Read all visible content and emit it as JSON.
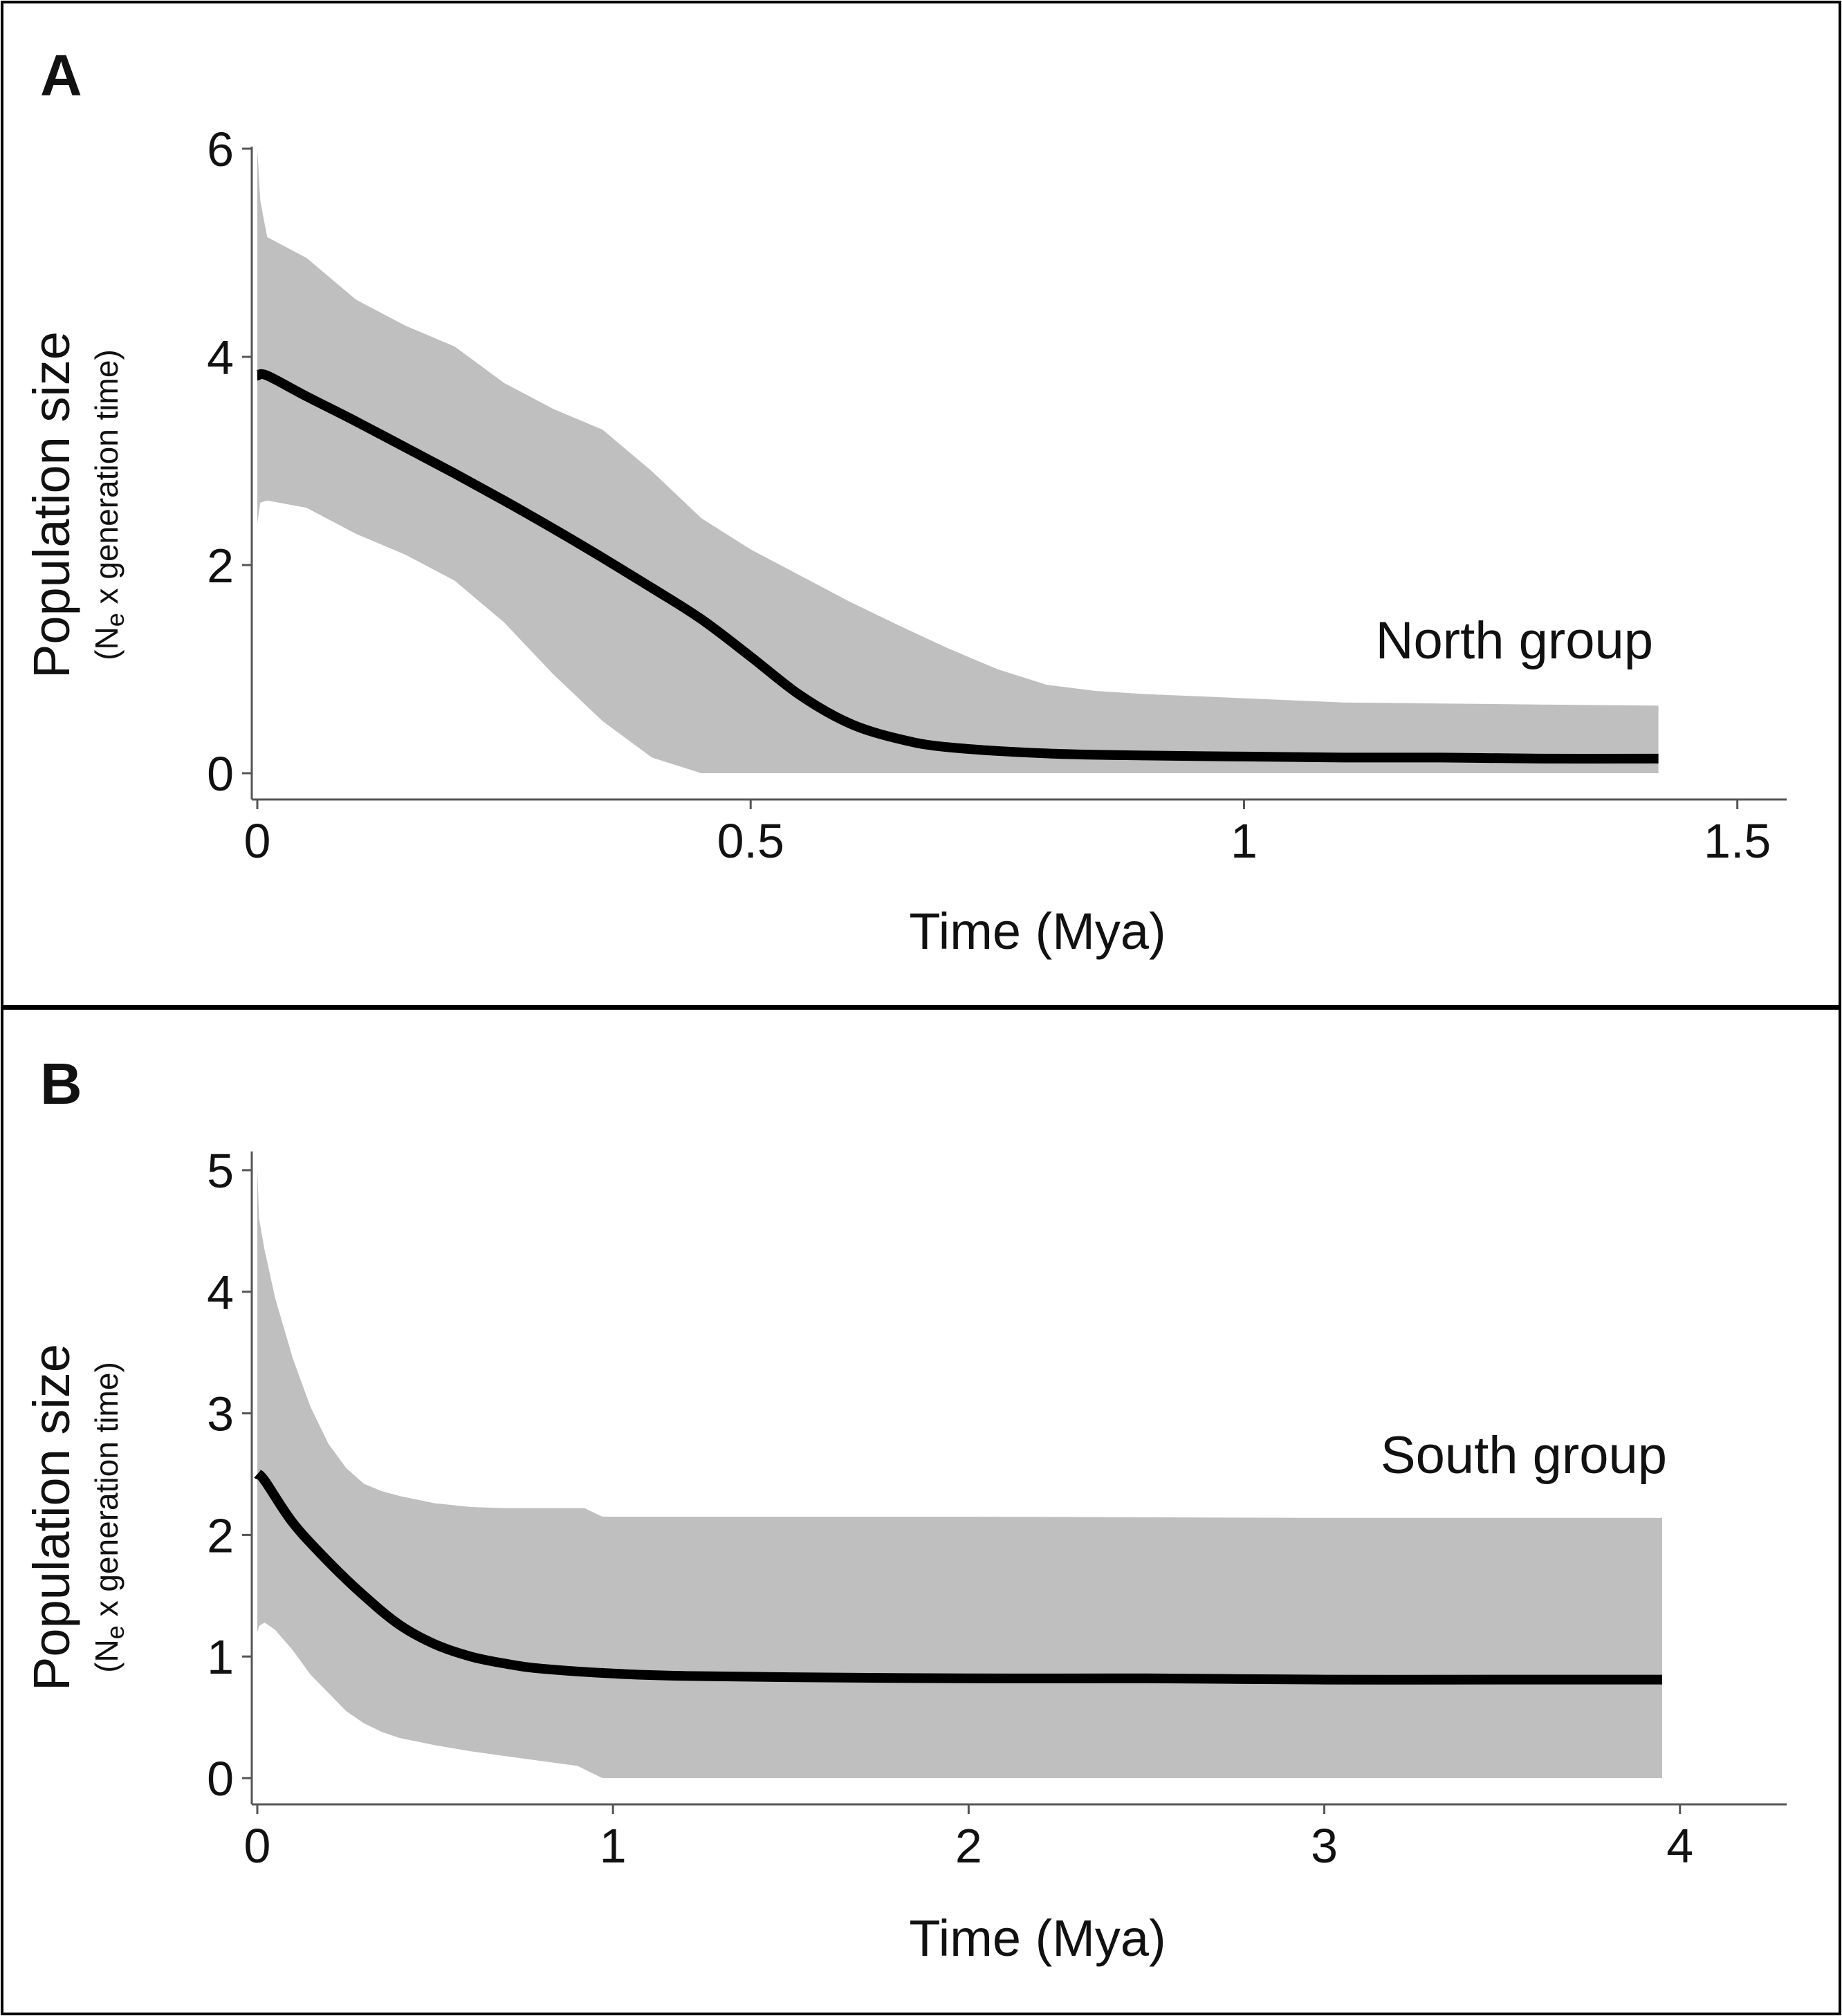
{
  "chart_data": [
    {
      "type": "area",
      "panel": "A",
      "title": "",
      "annotation": "North group",
      "xlabel": "Time (Mya)",
      "ylabel": "Population size",
      "ylabel_sub_prefix": "(N",
      "ylabel_sub_subscript": "e",
      "ylabel_sub_suffix": " x generation time)",
      "xlim": [
        0,
        1.55
      ],
      "ylim": [
        0,
        6.2
      ],
      "xticks": [
        0,
        0.5,
        1,
        1.5
      ],
      "xtick_labels": [
        "0",
        "0.5",
        "1",
        "1.5"
      ],
      "yticks": [
        0,
        2,
        4,
        6
      ],
      "ytick_labels": [
        "0",
        "2",
        "4",
        "6"
      ],
      "grid": false,
      "series": [
        {
          "name": "median",
          "x": [
            0,
            0.01,
            0.05,
            0.1,
            0.15,
            0.2,
            0.25,
            0.3,
            0.35,
            0.4,
            0.45,
            0.5,
            0.55,
            0.6,
            0.65,
            0.7,
            0.8,
            0.9,
            1.0,
            1.1,
            1.2,
            1.3,
            1.42
          ],
          "values": [
            3.82,
            3.82,
            3.62,
            3.38,
            3.13,
            2.88,
            2.62,
            2.35,
            2.07,
            1.78,
            1.48,
            1.12,
            0.75,
            0.48,
            0.33,
            0.25,
            0.19,
            0.17,
            0.16,
            0.15,
            0.15,
            0.14,
            0.14
          ]
        },
        {
          "name": "upper 95% HPD",
          "x": [
            0,
            0.003,
            0.01,
            0.05,
            0.1,
            0.15,
            0.2,
            0.25,
            0.3,
            0.35,
            0.4,
            0.45,
            0.5,
            0.55,
            0.6,
            0.65,
            0.7,
            0.75,
            0.8,
            0.85,
            0.9,
            1.0,
            1.1,
            1.2,
            1.3,
            1.42
          ],
          "values": [
            6.0,
            5.5,
            5.15,
            4.95,
            4.55,
            4.3,
            4.1,
            3.75,
            3.5,
            3.3,
            2.9,
            2.45,
            2.15,
            1.9,
            1.65,
            1.42,
            1.2,
            1.0,
            0.85,
            0.79,
            0.76,
            0.72,
            0.68,
            0.67,
            0.66,
            0.65
          ]
        },
        {
          "name": "lower 95% HPD",
          "x": [
            0,
            0.003,
            0.01,
            0.05,
            0.1,
            0.15,
            0.2,
            0.25,
            0.3,
            0.35,
            0.4,
            0.45,
            1.42
          ],
          "values": [
            2.4,
            2.6,
            2.62,
            2.55,
            2.3,
            2.1,
            1.85,
            1.45,
            0.95,
            0.5,
            0.15,
            0.0,
            0.0
          ]
        }
      ]
    },
    {
      "type": "area",
      "panel": "B",
      "title": "",
      "annotation": "South group",
      "xlabel": "Time (Mya)",
      "ylabel": "Population size",
      "ylabel_sub_prefix": "(N",
      "ylabel_sub_subscript": "e",
      "ylabel_sub_suffix": " x generation time)",
      "xlim": [
        0,
        4.3
      ],
      "ylim": [
        0,
        5.15
      ],
      "xticks": [
        0,
        1,
        2,
        3,
        4
      ],
      "xtick_labels": [
        "0",
        "1",
        "2",
        "3",
        "4"
      ],
      "yticks": [
        0,
        1,
        2,
        3,
        4,
        5
      ],
      "ytick_labels": [
        "0",
        "1",
        "2",
        "3",
        "4",
        "5"
      ],
      "grid": false,
      "series": [
        {
          "name": "median",
          "x": [
            0,
            0.02,
            0.1,
            0.2,
            0.3,
            0.4,
            0.5,
            0.6,
            0.7,
            0.8,
            1.0,
            1.2,
            1.5,
            2.0,
            2.5,
            3.0,
            3.5,
            3.95
          ],
          "values": [
            2.5,
            2.45,
            2.1,
            1.78,
            1.5,
            1.26,
            1.1,
            1.0,
            0.94,
            0.9,
            0.86,
            0.84,
            0.83,
            0.82,
            0.82,
            0.81,
            0.81,
            0.81
          ]
        },
        {
          "name": "upper 95% HPD",
          "x": [
            0,
            0.005,
            0.02,
            0.05,
            0.1,
            0.15,
            0.2,
            0.25,
            0.3,
            0.35,
            0.4,
            0.5,
            0.6,
            0.7,
            0.8,
            0.92,
            0.97,
            1.2,
            2.0,
            3.0,
            3.95
          ],
          "values": [
            5.0,
            4.6,
            4.35,
            3.95,
            3.45,
            3.05,
            2.75,
            2.55,
            2.42,
            2.36,
            2.32,
            2.26,
            2.23,
            2.22,
            2.22,
            2.22,
            2.15,
            2.15,
            2.15,
            2.14,
            2.14
          ]
        },
        {
          "name": "lower 95% HPD",
          "x": [
            0,
            0.005,
            0.02,
            0.05,
            0.1,
            0.15,
            0.2,
            0.25,
            0.3,
            0.35,
            0.4,
            0.5,
            0.6,
            0.7,
            0.8,
            0.9,
            0.97,
            3.95
          ],
          "values": [
            1.2,
            1.25,
            1.28,
            1.22,
            1.05,
            0.85,
            0.7,
            0.55,
            0.45,
            0.38,
            0.33,
            0.27,
            0.22,
            0.18,
            0.14,
            0.1,
            0.0,
            0.0
          ]
        }
      ]
    }
  ],
  "colors": {
    "ribbon": "#bfbfbf",
    "line": "#000000",
    "axis": "#555555",
    "frame": "#000000"
  }
}
